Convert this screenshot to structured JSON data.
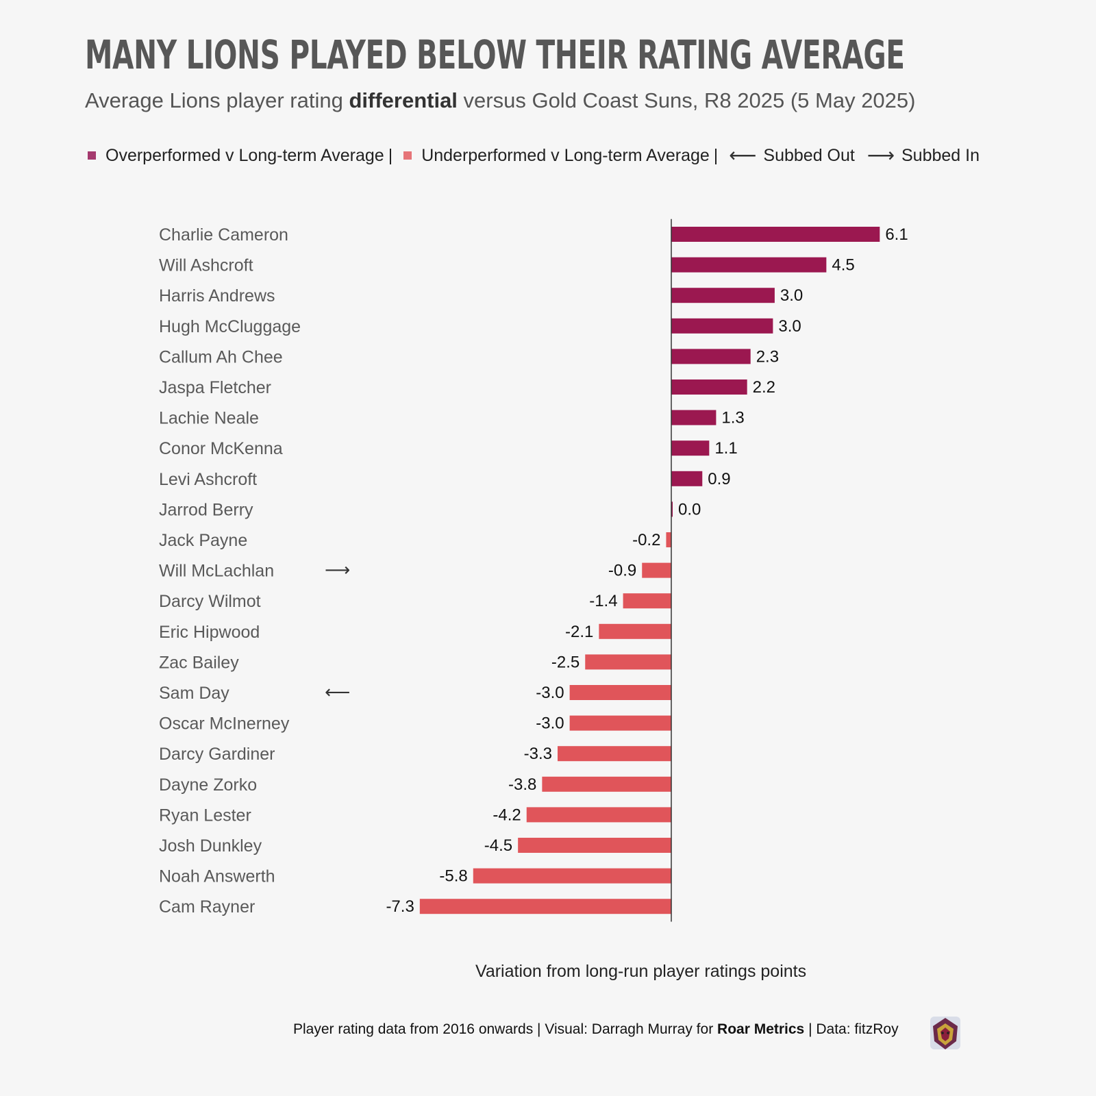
{
  "header": {
    "title": "MANY LIONS PLAYED BELOW THEIR RATING AVERAGE",
    "subtitle_pre": "Average Lions player rating ",
    "subtitle_bold": "differential",
    "subtitle_post": " versus Gold Coast Suns, R8 2025 (5 May 2025)"
  },
  "legend": {
    "over": "Overperformed v Long-term Average",
    "under": "Underperformed v Long-term Average",
    "separator": "|",
    "subbed_out_arrow": "⟵",
    "subbed_out": "Subbed Out",
    "subbed_in_arrow": "⟶",
    "subbed_in": "Subbed In"
  },
  "colors": {
    "over": "#9b1850",
    "under": "#e0555a",
    "axis": "#333333",
    "name_text": "#595959"
  },
  "chart_data": {
    "type": "bar",
    "orientation": "horizontal",
    "title": "MANY LIONS PLAYED BELOW THEIR RATING AVERAGE",
    "xlabel": "Variation from long-run player ratings points",
    "ylabel": "",
    "xlim": [
      -8.0,
      8.0
    ],
    "grid": false,
    "legend_position": "top",
    "categories": [
      "Charlie Cameron",
      "Will Ashcroft",
      "Harris Andrews",
      "Hugh McCluggage",
      "Callum Ah Chee",
      "Jaspa Fletcher",
      "Lachie Neale",
      "Conor McKenna",
      "Levi Ashcroft",
      "Jarrod Berry",
      "Jack Payne",
      "Will McLachlan",
      "Darcy Wilmot",
      "Eric Hipwood",
      "Zac Bailey",
      "Sam Day",
      "Oscar McInerney",
      "Darcy Gardiner",
      "Dayne Zorko",
      "Ryan Lester",
      "Josh Dunkley",
      "Noah Answerth",
      "Cam Rayner"
    ],
    "values": [
      6.05,
      4.5,
      3.0,
      2.95,
      2.3,
      2.2,
      1.3,
      1.1,
      0.9,
      0.04,
      -0.15,
      -0.85,
      -1.4,
      -2.1,
      -2.5,
      -2.95,
      -2.95,
      -3.3,
      -3.75,
      -4.2,
      -4.45,
      -5.75,
      -7.3
    ],
    "labels": [
      "6.1",
      "4.5",
      "3.0",
      "3.0",
      "2.3",
      "2.2",
      "1.3",
      "1.1",
      "0.9",
      "0.0",
      "-0.2",
      "-0.9",
      "-1.4",
      "-2.1",
      "-2.5",
      "-3.0",
      "-3.0",
      "-3.3",
      "-3.8",
      "-4.2",
      "-4.5",
      "-5.8",
      "-7.3"
    ],
    "substitution": [
      "",
      "",
      "",
      "",
      "",
      "",
      "",
      "",
      "",
      "",
      "",
      "in",
      "",
      "",
      "",
      "out",
      "",
      "",
      "",
      "",
      "",
      "",
      ""
    ]
  },
  "xlabel": "Variation from long-run player ratings points",
  "footer": {
    "pre": "Player rating data from 2016 onwards | Visual: Darragh Murray for ",
    "bold": "Roar Metrics",
    "post": " | Data: fitzRoy"
  },
  "logo_icon": "lion-head-logo-icon"
}
